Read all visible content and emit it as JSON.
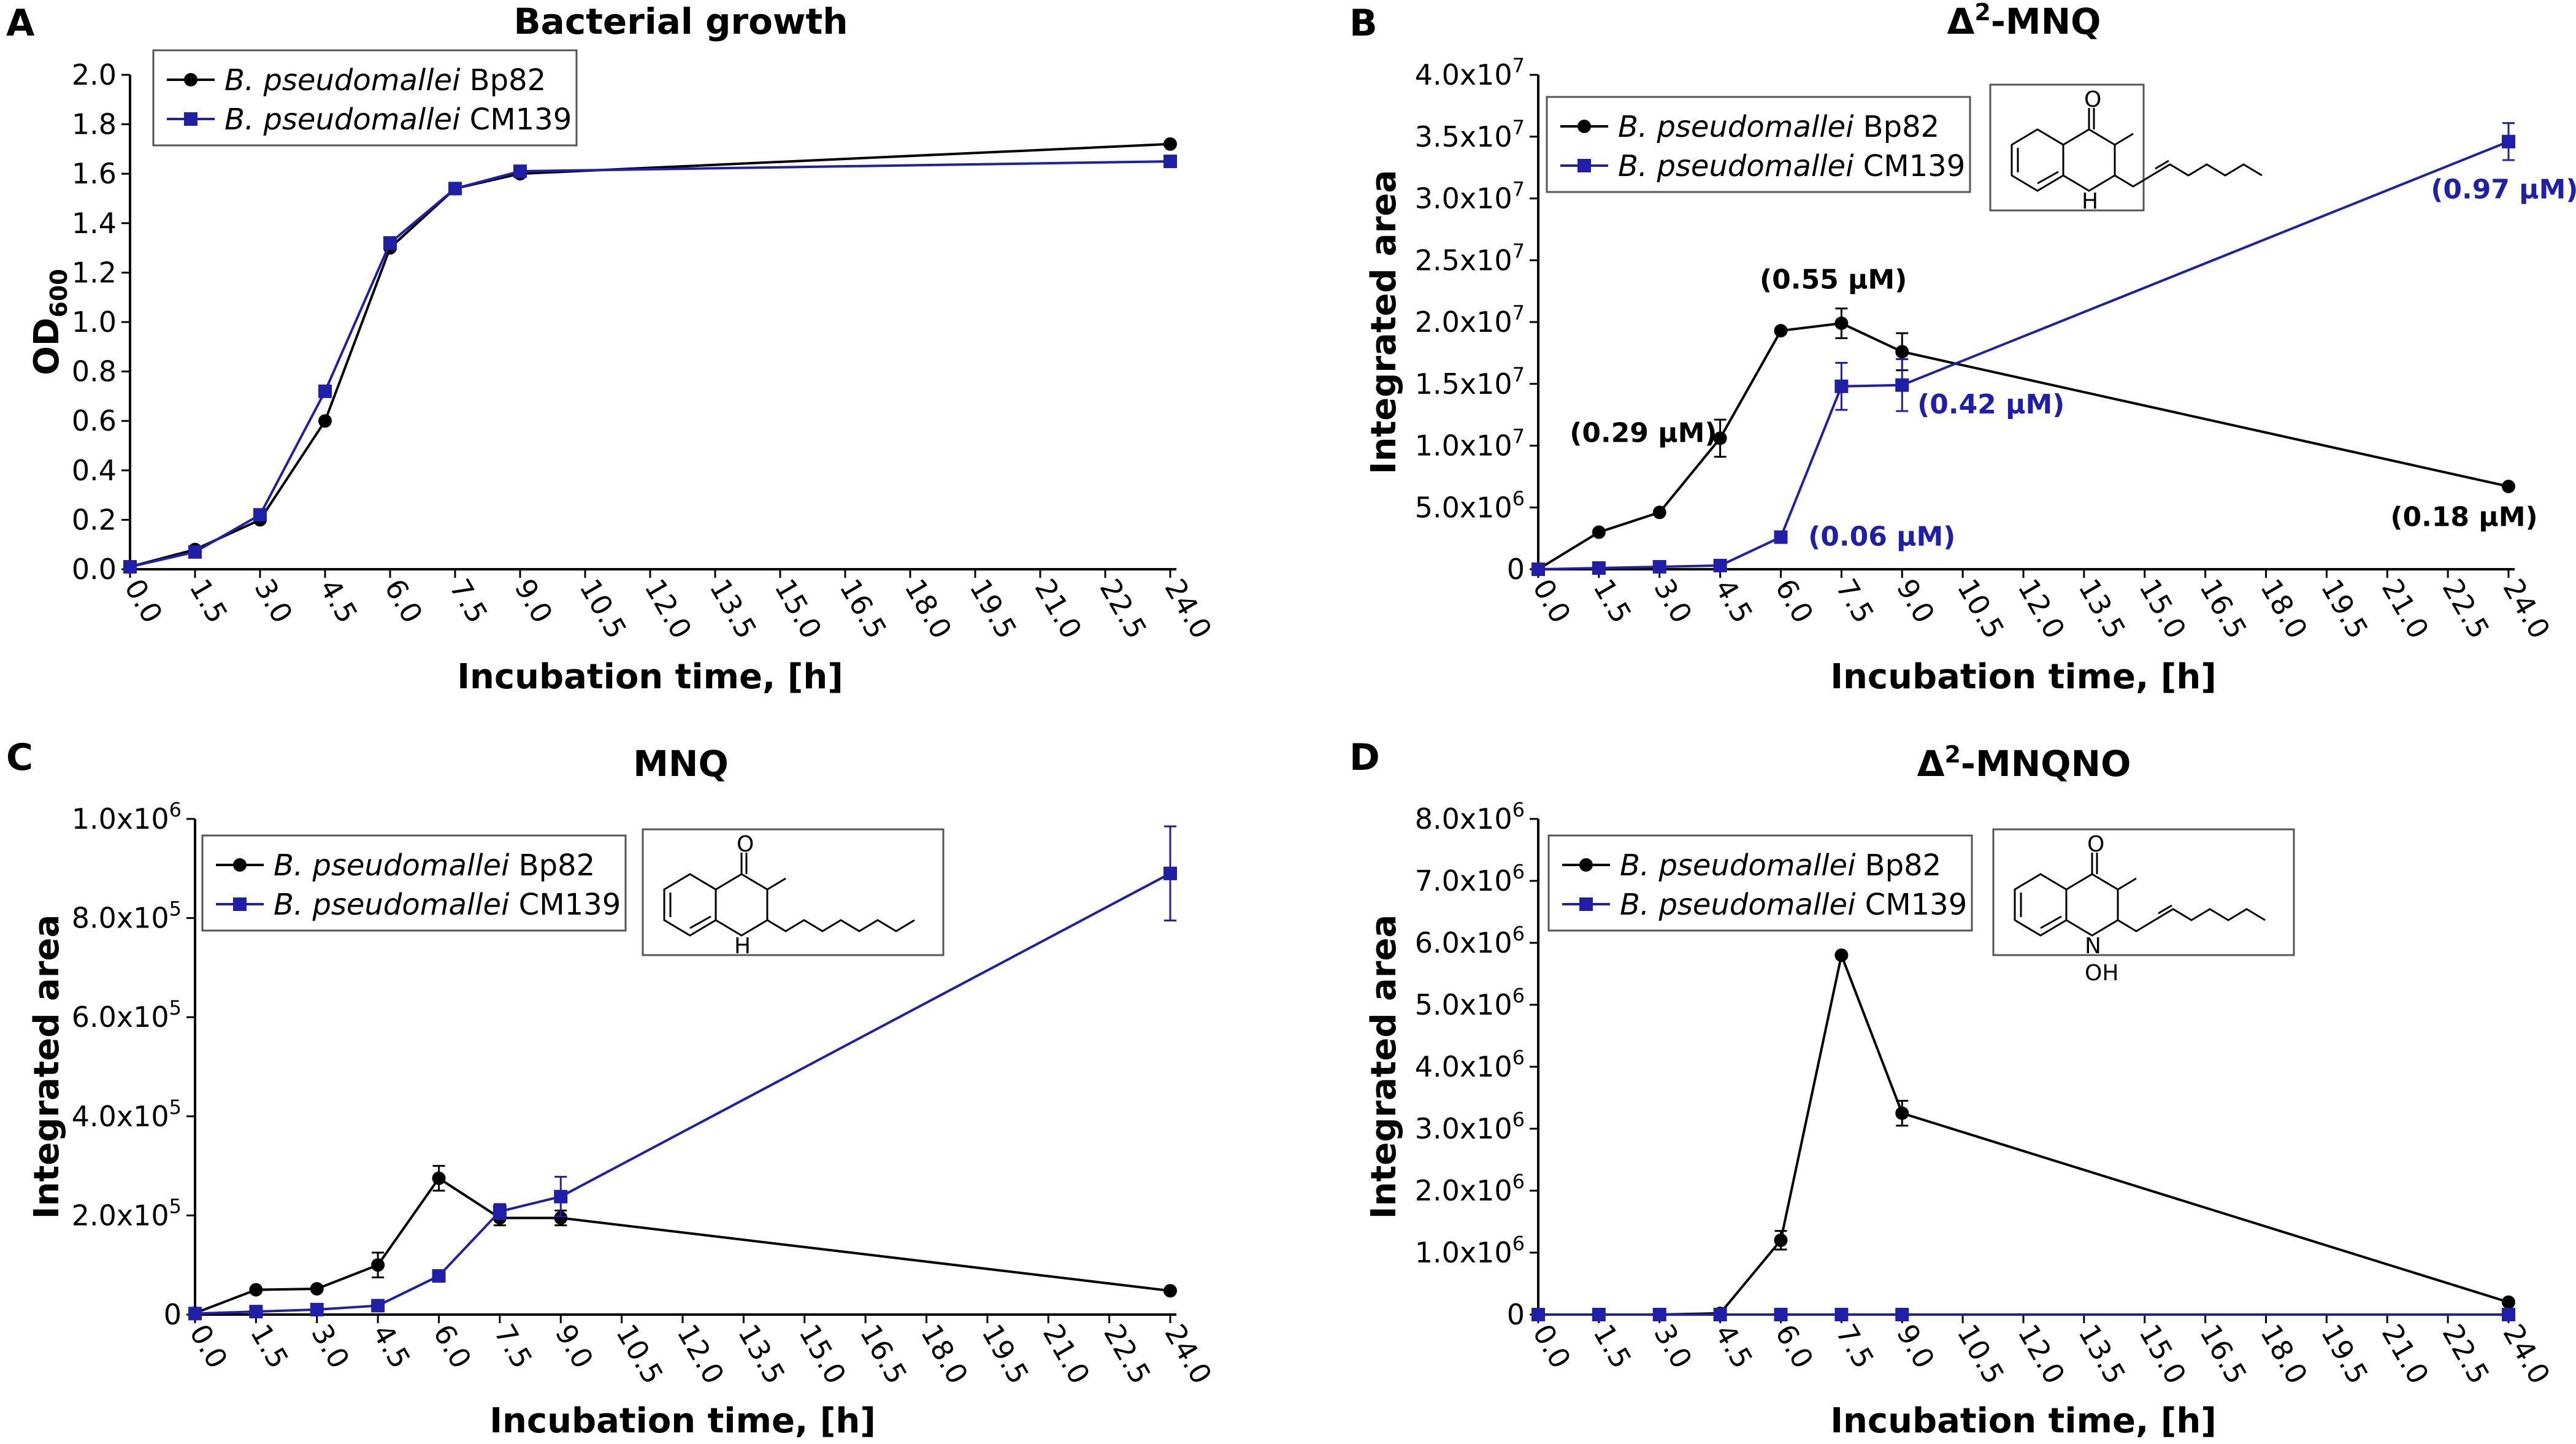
{
  "colors": {
    "bp82": "#000000",
    "cm139": "#1f1fa8"
  },
  "legend": {
    "bp82": {
      "italic": "B. pseudomallei",
      "rest": " Bp82"
    },
    "cm139": {
      "italic": "B. pseudomallei",
      "rest": " CM139"
    }
  },
  "chart_data": [
    {
      "panel": "A",
      "type": "line",
      "title": "Bacterial growth",
      "xlabel": "Incubation time, [h]",
      "ylabel": "OD",
      "ylabel_sub": "600",
      "x_ticks": [
        "0.0",
        "1.5",
        "3.0",
        "4.5",
        "6.0",
        "7.5",
        "9.0",
        "10.5",
        "12.0",
        "13.5",
        "15.0",
        "16.5",
        "18.0",
        "19.5",
        "21.0",
        "22.5",
        "24.0"
      ],
      "xlim": [
        0,
        24
      ],
      "ylim": [
        0,
        2.0
      ],
      "y_ticks": [
        {
          "v": 0,
          "m": "0.0",
          "e": ""
        },
        {
          "v": 0.2,
          "m": "0.2",
          "e": ""
        },
        {
          "v": 0.4,
          "m": "0.4",
          "e": ""
        },
        {
          "v": 0.6,
          "m": "0.6",
          "e": ""
        },
        {
          "v": 0.8,
          "m": "0.8",
          "e": ""
        },
        {
          "v": 1.0,
          "m": "1.0",
          "e": ""
        },
        {
          "v": 1.2,
          "m": "1.2",
          "e": ""
        },
        {
          "v": 1.4,
          "m": "1.4",
          "e": ""
        },
        {
          "v": 1.6,
          "m": "1.6",
          "e": ""
        },
        {
          "v": 1.8,
          "m": "1.8",
          "e": ""
        },
        {
          "v": 2.0,
          "m": "2.0",
          "e": ""
        }
      ],
      "legend_position": "top-left",
      "series": [
        {
          "key": "bp82",
          "marker": "circle",
          "x": [
            0,
            1.5,
            3,
            4.5,
            6,
            7.5,
            9,
            24
          ],
          "y": [
            0.01,
            0.08,
            0.2,
            0.6,
            1.3,
            1.54,
            1.6,
            1.72
          ],
          "err": [
            0,
            0,
            0,
            0,
            0,
            0,
            0,
            0
          ]
        },
        {
          "key": "cm139",
          "marker": "square",
          "x": [
            0,
            1.5,
            3,
            4.5,
            6,
            7.5,
            9,
            24
          ],
          "y": [
            0.01,
            0.07,
            0.22,
            0.72,
            1.32,
            1.54,
            1.61,
            1.65
          ],
          "err": [
            0,
            0,
            0,
            0,
            0,
            0,
            0,
            0
          ]
        }
      ],
      "annotations": []
    },
    {
      "panel": "B",
      "type": "line",
      "title": "Δ",
      "title_sup": "2",
      "title_rest": "-MNQ",
      "xlabel": "Incubation time, [h]",
      "ylabel": "Integrated area",
      "x_ticks": [
        "0.0",
        "1.5",
        "3.0",
        "4.5",
        "6.0",
        "7.5",
        "9.0",
        "10.5",
        "12.0",
        "13.5",
        "15.0",
        "16.5",
        "18.0",
        "19.5",
        "21.0",
        "22.5",
        "24.0"
      ],
      "xlim": [
        0,
        24
      ],
      "ylim": [
        0,
        40000000
      ],
      "y_ticks": [
        {
          "v": 0,
          "m": "0",
          "e": ""
        },
        {
          "v": 5000000,
          "m": "5.0x10",
          "e": "6"
        },
        {
          "v": 10000000,
          "m": "1.0x10",
          "e": "7"
        },
        {
          "v": 15000000,
          "m": "1.5x10",
          "e": "7"
        },
        {
          "v": 20000000,
          "m": "2.0x10",
          "e": "7"
        },
        {
          "v": 25000000,
          "m": "2.5x10",
          "e": "7"
        },
        {
          "v": 30000000,
          "m": "3.0x10",
          "e": "7"
        },
        {
          "v": 35000000,
          "m": "3.5x10",
          "e": "7"
        },
        {
          "v": 40000000,
          "m": "4.0x10",
          "e": "7"
        }
      ],
      "legend_position": "top-left",
      "structure": "unsaturated-NH",
      "series": [
        {
          "key": "bp82",
          "marker": "circle",
          "x": [
            0,
            1.5,
            3,
            4.5,
            6,
            7.5,
            9,
            24
          ],
          "y": [
            0,
            3000000,
            4600000,
            10600000,
            19300000,
            19900000,
            17600000,
            6700000
          ],
          "err": [
            0,
            0,
            0,
            1500000,
            0,
            1200000,
            1500000,
            0
          ]
        },
        {
          "key": "cm139",
          "marker": "square",
          "x": [
            0,
            1.5,
            3,
            4.5,
            6,
            7.5,
            9,
            24
          ],
          "y": [
            0,
            100000,
            200000,
            300000,
            2600000,
            14800000,
            14900000,
            34600000
          ],
          "err": [
            0,
            0,
            0,
            0,
            0,
            1900000,
            2100000,
            1500000
          ]
        }
      ],
      "annotations": [
        {
          "text": "(0.29 µM)",
          "x": 2.6,
          "y": 10300000,
          "series": "bp82"
        },
        {
          "text": "(0.55 µM)",
          "x": 7.3,
          "y": 22700000,
          "series": "bp82"
        },
        {
          "text": "(0.18 µM)",
          "x": 22.9,
          "y": 3500000,
          "series": "bp82"
        },
        {
          "text": "(0.97 µM)",
          "x": 23.9,
          "y": 30000000,
          "series": "cm139"
        },
        {
          "text": "(0.42 µM)",
          "x": 11.2,
          "y": 12600000,
          "series": "cm139"
        },
        {
          "text": "(0.06 µM)",
          "x": 8.5,
          "y": 1900000,
          "series": "cm139"
        }
      ]
    },
    {
      "panel": "C",
      "type": "line",
      "title": "MNQ",
      "xlabel": "Incubation time, [h]",
      "ylabel": "Integrated area",
      "x_ticks": [
        "0.0",
        "1.5",
        "3.0",
        "4.5",
        "6.0",
        "7.5",
        "9.0",
        "10.5",
        "12.0",
        "13.5",
        "15.0",
        "16.5",
        "18.0",
        "19.5",
        "21.0",
        "22.5",
        "24.0"
      ],
      "xlim": [
        0,
        24
      ],
      "ylim": [
        0,
        1000000
      ],
      "y_ticks": [
        {
          "v": 0,
          "m": "0",
          "e": ""
        },
        {
          "v": 200000,
          "m": "2.0x10",
          "e": "5"
        },
        {
          "v": 400000,
          "m": "4.0x10",
          "e": "5"
        },
        {
          "v": 600000,
          "m": "6.0x10",
          "e": "5"
        },
        {
          "v": 800000,
          "m": "8.0x10",
          "e": "5"
        },
        {
          "v": 1000000,
          "m": "1.0x10",
          "e": "6"
        }
      ],
      "legend_position": "top-left",
      "structure": "saturated-NH",
      "series": [
        {
          "key": "bp82",
          "marker": "circle",
          "x": [
            0,
            1.5,
            3,
            4.5,
            6,
            7.5,
            9,
            24
          ],
          "y": [
            3000,
            50000,
            52000,
            100000,
            275000,
            195000,
            195000,
            48000
          ],
          "err": [
            0,
            0,
            0,
            25000,
            25000,
            15000,
            15000,
            0
          ]
        },
        {
          "key": "cm139",
          "marker": "square",
          "x": [
            0,
            1.5,
            3,
            4.5,
            6,
            7.5,
            9,
            24
          ],
          "y": [
            2000,
            6000,
            10000,
            18000,
            78000,
            208000,
            238000,
            890000
          ],
          "err": [
            0,
            0,
            0,
            0,
            0,
            15000,
            40000,
            95000
          ]
        }
      ],
      "annotations": []
    },
    {
      "panel": "D",
      "type": "line",
      "title": "Δ",
      "title_sup": "2",
      "title_rest": "-MNQNO",
      "xlabel": "Incubation time, [h]",
      "ylabel": "Integrated area",
      "x_ticks": [
        "0.0",
        "1.5",
        "3.0",
        "4.5",
        "6.0",
        "7.5",
        "9.0",
        "10.5",
        "12.0",
        "13.5",
        "15.0",
        "16.5",
        "18.0",
        "19.5",
        "21.0",
        "22.5",
        "24.0"
      ],
      "xlim": [
        0,
        24
      ],
      "ylim": [
        0,
        8000000
      ],
      "y_ticks": [
        {
          "v": 0,
          "m": "0",
          "e": ""
        },
        {
          "v": 1000000,
          "m": "1.0x10",
          "e": "6"
        },
        {
          "v": 2000000,
          "m": "2.0x10",
          "e": "6"
        },
        {
          "v": 3000000,
          "m": "3.0x10",
          "e": "6"
        },
        {
          "v": 4000000,
          "m": "4.0x10",
          "e": "6"
        },
        {
          "v": 5000000,
          "m": "5.0x10",
          "e": "6"
        },
        {
          "v": 6000000,
          "m": "6.0x10",
          "e": "6"
        },
        {
          "v": 7000000,
          "m": "7.0x10",
          "e": "6"
        },
        {
          "v": 8000000,
          "m": "8.0x10",
          "e": "6"
        }
      ],
      "legend_position": "top-left",
      "structure": "unsaturated-NOH",
      "series": [
        {
          "key": "bp82",
          "marker": "circle",
          "x": [
            0,
            1.5,
            3,
            4.5,
            6,
            7.5,
            9,
            24
          ],
          "y": [
            0,
            0,
            0,
            20000,
            1200000,
            5800000,
            3250000,
            200000
          ],
          "err": [
            0,
            0,
            0,
            0,
            150000,
            0,
            200000,
            0
          ]
        },
        {
          "key": "cm139",
          "marker": "square",
          "x": [
            0,
            1.5,
            3,
            4.5,
            6,
            7.5,
            9,
            24
          ],
          "y": [
            0,
            0,
            0,
            0,
            0,
            0,
            0,
            0
          ],
          "err": [
            0,
            0,
            0,
            0,
            0,
            0,
            0,
            0
          ]
        }
      ],
      "annotations": []
    }
  ]
}
